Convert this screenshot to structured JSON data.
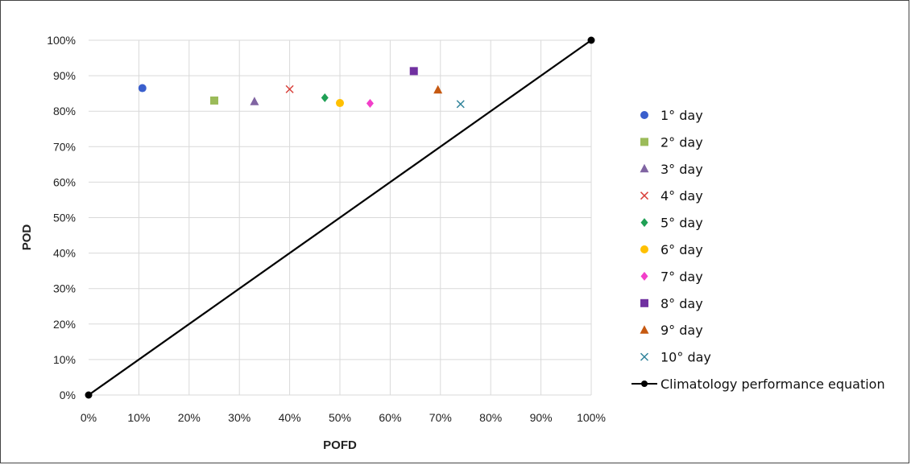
{
  "chart_data": {
    "type": "scatter",
    "xlabel": "POFD",
    "ylabel": "POD",
    "xlim": [
      0,
      100
    ],
    "ylim": [
      0,
      100
    ],
    "x_ticks": [
      "0%",
      "10%",
      "20%",
      "30%",
      "40%",
      "50%",
      "60%",
      "70%",
      "80%",
      "90%",
      "100%"
    ],
    "y_ticks": [
      "0%",
      "10%",
      "20%",
      "30%",
      "40%",
      "50%",
      "60%",
      "70%",
      "80%",
      "90%",
      "100%"
    ],
    "grid": true,
    "legend_position": "right",
    "series": [
      {
        "name": "1° day",
        "marker": "circle",
        "color": "#3A5FCD",
        "x": 10.7,
        "y": 86.5
      },
      {
        "name": "2° day",
        "marker": "square",
        "color": "#9BBB59",
        "x": 25.0,
        "y": 83.0
      },
      {
        "name": "3° day",
        "marker": "triangle",
        "color": "#8064A2",
        "x": 33.0,
        "y": 82.7
      },
      {
        "name": "4° day",
        "marker": "x",
        "color": "#D9413B",
        "x": 40.0,
        "y": 86.2
      },
      {
        "name": "5° day",
        "marker": "diamond",
        "color": "#1FA055",
        "x": 47.0,
        "y": 83.8
      },
      {
        "name": "6° day",
        "marker": "circle",
        "color": "#FFC000",
        "x": 50.0,
        "y": 82.3
      },
      {
        "name": "7° day",
        "marker": "diamond",
        "color": "#F23FC9",
        "x": 56.0,
        "y": 82.2
      },
      {
        "name": "8° day",
        "marker": "square",
        "color": "#7030A0",
        "x": 64.7,
        "y": 91.3
      },
      {
        "name": "9° day",
        "marker": "triangle",
        "color": "#C65911",
        "x": 69.5,
        "y": 86.0
      },
      {
        "name": "10° day",
        "marker": "x",
        "color": "#31849B",
        "x": 74.0,
        "y": 82.0
      },
      {
        "name": "Climatology performance equation",
        "marker": "line",
        "color": "#000000",
        "points": [
          [
            0,
            0
          ],
          [
            100,
            100
          ]
        ]
      }
    ]
  }
}
